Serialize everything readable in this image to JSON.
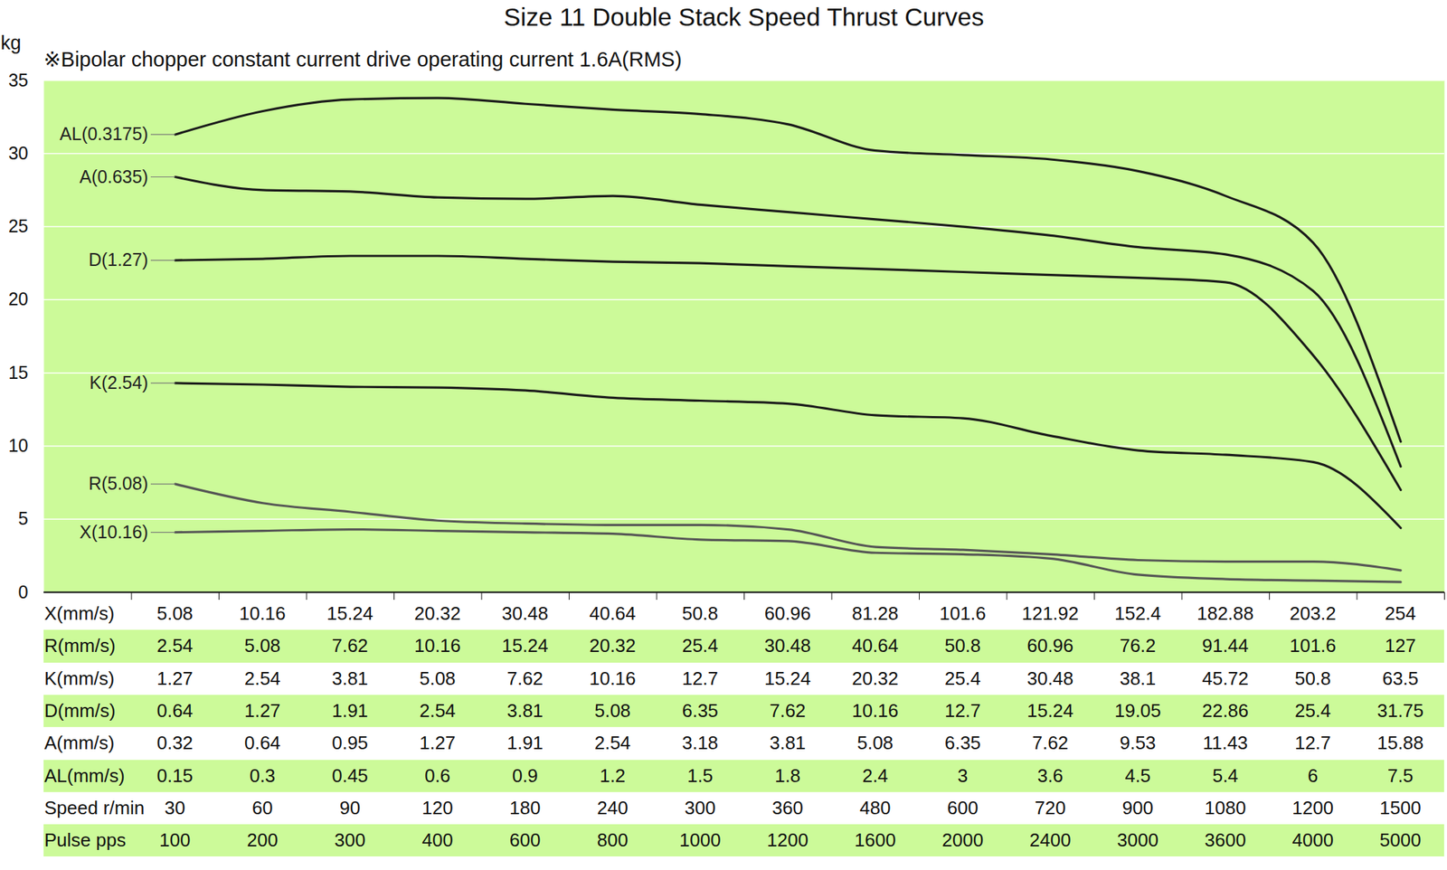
{
  "chart_data": {
    "type": "line",
    "title": "Size 11 Double Stack Speed Thrust Curves",
    "subtitle": "※Bipolar chopper constant current drive operating current 1.6A(RMS)",
    "y_label": "kg",
    "ylim": [
      0,
      35
    ],
    "yticks": [
      0,
      5,
      10,
      15,
      20,
      25,
      30,
      35
    ],
    "grid": true,
    "x_rows": [
      {
        "label": "X(mm/s)",
        "values": [
          5.08,
          10.16,
          15.24,
          20.32,
          30.48,
          40.64,
          50.8,
          60.96,
          81.28,
          101.6,
          121.92,
          152.4,
          182.88,
          203.2,
          254
        ]
      },
      {
        "label": "R(mm/s)",
        "values": [
          2.54,
          5.08,
          7.62,
          10.16,
          15.24,
          20.32,
          25.4,
          30.48,
          40.64,
          50.8,
          60.96,
          76.2,
          91.44,
          101.6,
          127
        ]
      },
      {
        "label": "K(mm/s)",
        "values": [
          1.27,
          2.54,
          3.81,
          5.08,
          7.62,
          10.16,
          12.7,
          15.24,
          20.32,
          25.4,
          30.48,
          38.1,
          45.72,
          50.8,
          63.5
        ]
      },
      {
        "label": "D(mm/s)",
        "values": [
          0.64,
          1.27,
          1.91,
          2.54,
          3.81,
          5.08,
          6.35,
          7.62,
          10.16,
          12.7,
          15.24,
          19.05,
          22.86,
          25.4,
          31.75
        ]
      },
      {
        "label": "A(mm/s)",
        "values": [
          0.32,
          0.64,
          0.95,
          1.27,
          1.91,
          2.54,
          3.18,
          3.81,
          5.08,
          6.35,
          7.62,
          9.53,
          11.43,
          12.7,
          15.88
        ]
      },
      {
        "label": "AL(mm/s)",
        "values": [
          0.15,
          0.3,
          0.45,
          0.6,
          0.9,
          1.2,
          1.5,
          1.8,
          2.4,
          3,
          3.6,
          4.5,
          5.4,
          6,
          7.5
        ]
      },
      {
        "label": "Speed r/min",
        "values": [
          30,
          60,
          90,
          120,
          180,
          240,
          300,
          360,
          480,
          600,
          720,
          900,
          1080,
          1200,
          1500
        ]
      },
      {
        "label": "Pulse pps",
        "values": [
          100,
          200,
          300,
          400,
          600,
          800,
          1000,
          1200,
          1600,
          2000,
          2400,
          3000,
          3600,
          4000,
          5000
        ]
      }
    ],
    "series": [
      {
        "name": "AL(0.3175)",
        "color": "#1a1a1a",
        "values": [
          31.3,
          32.9,
          33.7,
          33.8,
          33.4,
          33.0,
          32.7,
          32.0,
          30.2,
          29.9,
          29.6,
          28.8,
          27.1,
          23.9,
          10.3
        ]
      },
      {
        "name": "A(0.635)",
        "color": "#1a1a1a",
        "values": [
          28.4,
          27.5,
          27.4,
          27.0,
          26.9,
          27.1,
          26.5,
          26.0,
          25.5,
          25.0,
          24.4,
          23.6,
          23.1,
          20.6,
          8.6
        ]
      },
      {
        "name": "D(1.27)",
        "color": "#1a1a1a",
        "values": [
          22.7,
          22.8,
          23.0,
          23.0,
          22.8,
          22.6,
          22.5,
          22.3,
          22.1,
          21.9,
          21.7,
          21.5,
          21.2,
          16.2,
          7.0
        ]
      },
      {
        "name": "K(2.54)",
        "color": "#1a1a1a",
        "values": [
          14.3,
          14.2,
          14.05,
          14.0,
          13.8,
          13.3,
          13.1,
          12.9,
          12.1,
          11.9,
          10.7,
          9.7,
          9.4,
          8.9,
          4.4
        ]
      },
      {
        "name": "R(5.08)",
        "color": "#555555",
        "values": [
          7.4,
          6.1,
          5.5,
          4.9,
          4.7,
          4.6,
          4.6,
          4.3,
          3.1,
          2.9,
          2.6,
          2.2,
          2.1,
          2.1,
          1.5
        ]
      },
      {
        "name": "X(10.16)",
        "color": "#555555",
        "values": [
          4.1,
          4.2,
          4.3,
          4.2,
          4.1,
          4.0,
          3.6,
          3.5,
          2.7,
          2.6,
          2.3,
          1.2,
          0.9,
          0.8,
          0.7
        ]
      }
    ]
  }
}
